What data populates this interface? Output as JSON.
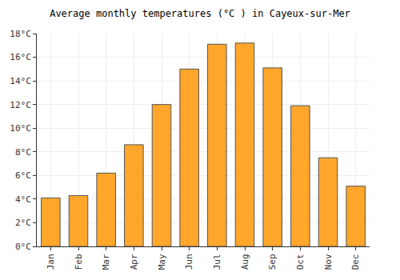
{
  "chart_data": {
    "type": "bar",
    "title": "Average monthly temperatures (°C ) in Cayeux-sur-Mer",
    "categories": [
      "Jan",
      "Feb",
      "Mar",
      "Apr",
      "May",
      "Jun",
      "Jul",
      "Aug",
      "Sep",
      "Oct",
      "Nov",
      "Dec"
    ],
    "values": [
      4.1,
      4.3,
      6.2,
      8.6,
      12.0,
      15.0,
      17.1,
      17.2,
      15.1,
      11.9,
      7.5,
      5.1
    ],
    "color": "#ffa62b",
    "ylim": [
      0,
      18
    ],
    "yticks": [
      {
        "value": 0,
        "label": "0°C"
      },
      {
        "value": 2,
        "label": "2°C"
      },
      {
        "value": 4,
        "label": "4°C"
      },
      {
        "value": 6,
        "label": "6°C"
      },
      {
        "value": 8,
        "label": "8°C"
      },
      {
        "value": 10,
        "label": "10°C"
      },
      {
        "value": 12,
        "label": "12°C"
      },
      {
        "value": 14,
        "label": "14°C"
      },
      {
        "value": 16,
        "label": "16°C"
      },
      {
        "value": 18,
        "label": "18°C"
      }
    ],
    "grid": true
  }
}
